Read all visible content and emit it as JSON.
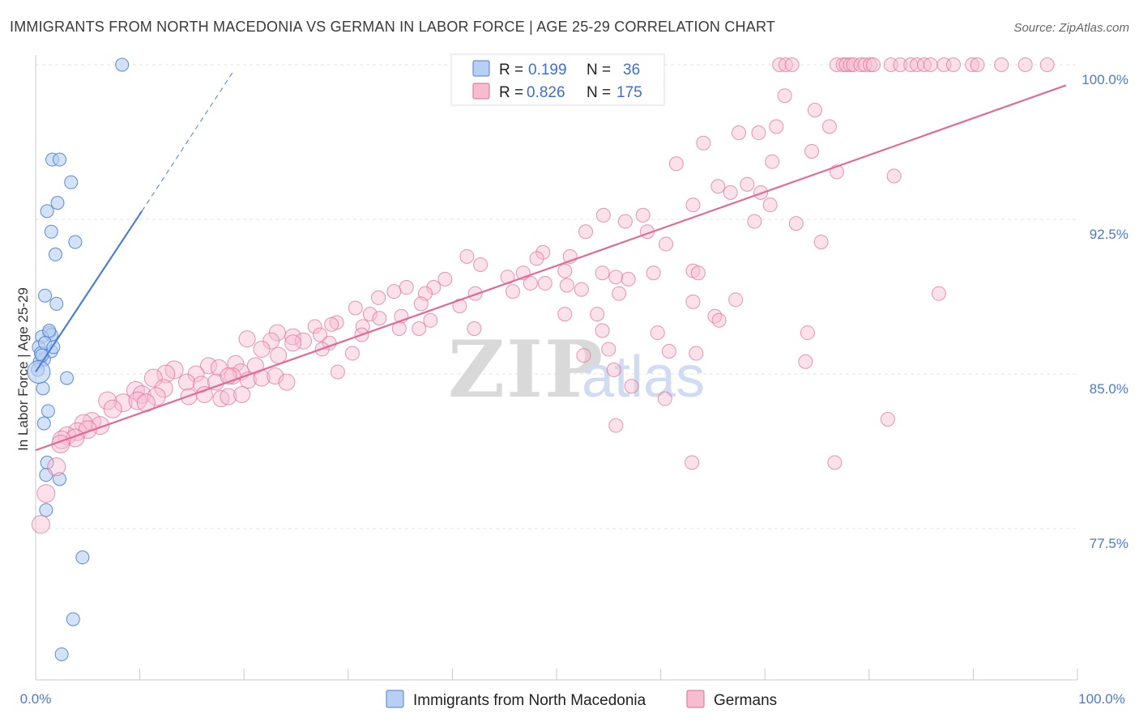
{
  "chart_data": {
    "type": "scatter",
    "title": "IMMIGRANTS FROM NORTH MACEDONIA VS GERMAN IN LABOR FORCE | AGE 25-29 CORRELATION CHART",
    "source": "Source: ZipAtlas.com",
    "xlabel": "",
    "ylabel": "In Labor Force | Age 25-29",
    "xlim": [
      0,
      100
    ],
    "ylim": [
      70.5,
      101.5
    ],
    "x_tick_labels": [
      "0.0%",
      "100.0%"
    ],
    "y_ticks": [
      77.5,
      85.0,
      92.5,
      100.0
    ],
    "y_tick_labels": [
      "77.5%",
      "85.0%",
      "92.5%",
      "100.0%"
    ],
    "watermark": [
      "ZIP",
      "atlas"
    ],
    "legend_stats": [
      {
        "r_label": "R =",
        "r": "0.199",
        "n_label": "N =",
        "n": "36"
      },
      {
        "r_label": "R =",
        "r": "0.826",
        "n_label": "N =",
        "n": "175"
      }
    ],
    "series": [
      {
        "name": "Immigrants from North Macedonia",
        "color": "#4a7fd4",
        "fill": "#b7cff2",
        "trend": {
          "x0": 0,
          "y0": 85.1,
          "x1": 10.2,
          "y1": 92.9,
          "dash_to_x": 19.0,
          "dash_to_y": 99.7
        },
        "points": [
          [
            8.3,
            100
          ],
          [
            1.6,
            95.4
          ],
          [
            2.3,
            95.4
          ],
          [
            3.4,
            94.3
          ],
          [
            2.1,
            93.3
          ],
          [
            1.1,
            92.9
          ],
          [
            1.5,
            91.9
          ],
          [
            3.8,
            91.4
          ],
          [
            1.9,
            90.8
          ],
          [
            0.9,
            88.8
          ],
          [
            2.0,
            88.4
          ],
          [
            1.3,
            87.0
          ],
          [
            1.5,
            86.9
          ],
          [
            0.6,
            86.8
          ],
          [
            0.3,
            86.3
          ],
          [
            1.5,
            86.1
          ],
          [
            0.4,
            85.6
          ],
          [
            0.8,
            85.7
          ],
          [
            0.2,
            85.2
          ],
          [
            3.0,
            84.8
          ],
          [
            0.7,
            84.3
          ],
          [
            1.2,
            83.2
          ],
          [
            0.8,
            82.6
          ],
          [
            1.1,
            80.7
          ],
          [
            1.0,
            80.1
          ],
          [
            2.3,
            79.9
          ],
          [
            1.0,
            78.4
          ],
          [
            4.5,
            76.1
          ],
          [
            3.6,
            73.1
          ],
          [
            2.5,
            71.4
          ],
          [
            0.5,
            86.0
          ],
          [
            0.9,
            86.5
          ],
          [
            1.7,
            86.3
          ],
          [
            1.3,
            87.1
          ],
          [
            0.6,
            85.9
          ],
          [
            0.3,
            85.1
          ]
        ]
      },
      {
        "name": "Germans",
        "color": "#e06a96",
        "fill": "#f6bcd0",
        "trend": {
          "x0": 0,
          "y0": 81.3,
          "x1": 98.9,
          "y1": 99.0
        },
        "points": [
          [
            71.4,
            100
          ],
          [
            72.0,
            100
          ],
          [
            72.6,
            100
          ],
          [
            76.9,
            100
          ],
          [
            77.5,
            100
          ],
          [
            77.8,
            100
          ],
          [
            78.2,
            100
          ],
          [
            78.5,
            100
          ],
          [
            79.2,
            100
          ],
          [
            79.6,
            100
          ],
          [
            80.1,
            100
          ],
          [
            80.4,
            100
          ],
          [
            82.1,
            100
          ],
          [
            83.0,
            100
          ],
          [
            84.0,
            100
          ],
          [
            84.6,
            100
          ],
          [
            85.3,
            100
          ],
          [
            85.9,
            100
          ],
          [
            87.2,
            100
          ],
          [
            88.1,
            100
          ],
          [
            89.9,
            100
          ],
          [
            90.4,
            100
          ],
          [
            92.7,
            100
          ],
          [
            95.0,
            100
          ],
          [
            97.1,
            100
          ],
          [
            71.9,
            98.5
          ],
          [
            74.8,
            97.8
          ],
          [
            71.1,
            97.0
          ],
          [
            76.2,
            97.0
          ],
          [
            67.5,
            96.7
          ],
          [
            69.4,
            96.7
          ],
          [
            64.1,
            96.2
          ],
          [
            74.5,
            95.8
          ],
          [
            61.5,
            95.2
          ],
          [
            70.7,
            95.3
          ],
          [
            76.9,
            94.8
          ],
          [
            82.4,
            94.6
          ],
          [
            65.5,
            94.1
          ],
          [
            68.3,
            94.2
          ],
          [
            69.6,
            93.8
          ],
          [
            66.7,
            93.8
          ],
          [
            63.1,
            93.2
          ],
          [
            70.5,
            93.2
          ],
          [
            54.5,
            92.7
          ],
          [
            58.3,
            92.7
          ],
          [
            56.6,
            92.4
          ],
          [
            69.0,
            92.4
          ],
          [
            73.0,
            92.3
          ],
          [
            52.8,
            91.9
          ],
          [
            58.7,
            91.9
          ],
          [
            75.4,
            91.4
          ],
          [
            60.5,
            91.3
          ],
          [
            48.7,
            90.9
          ],
          [
            51.3,
            90.7
          ],
          [
            48.1,
            90.6
          ],
          [
            41.4,
            90.7
          ],
          [
            42.7,
            90.3
          ],
          [
            50.8,
            90.0
          ],
          [
            46.8,
            89.9
          ],
          [
            54.4,
            89.9
          ],
          [
            59.3,
            89.9
          ],
          [
            63.1,
            90.0
          ],
          [
            63.6,
            89.9
          ],
          [
            55.7,
            89.7
          ],
          [
            56.9,
            89.6
          ],
          [
            45.3,
            89.7
          ],
          [
            48.9,
            89.4
          ],
          [
            39.3,
            89.6
          ],
          [
            38.2,
            89.2
          ],
          [
            47.5,
            89.4
          ],
          [
            51.0,
            89.3
          ],
          [
            35.6,
            89.2
          ],
          [
            34.4,
            89.0
          ],
          [
            37.4,
            88.9
          ],
          [
            45.8,
            89.0
          ],
          [
            52.4,
            89.1
          ],
          [
            56.0,
            88.9
          ],
          [
            42.2,
            88.9
          ],
          [
            32.9,
            88.7
          ],
          [
            37.0,
            88.4
          ],
          [
            40.7,
            88.3
          ],
          [
            30.7,
            88.2
          ],
          [
            32.1,
            87.9
          ],
          [
            35.1,
            87.8
          ],
          [
            50.8,
            87.9
          ],
          [
            53.9,
            87.9
          ],
          [
            65.2,
            87.8
          ],
          [
            65.6,
            87.6
          ],
          [
            28.9,
            87.5
          ],
          [
            33.0,
            87.7
          ],
          [
            28.4,
            87.4
          ],
          [
            31.4,
            87.3
          ],
          [
            34.9,
            87.2
          ],
          [
            36.8,
            87.2
          ],
          [
            37.9,
            87.6
          ],
          [
            26.8,
            87.3
          ],
          [
            27.3,
            86.9
          ],
          [
            23.2,
            87.0
          ],
          [
            42.1,
            87.2
          ],
          [
            54.4,
            87.1
          ],
          [
            59.7,
            87.0
          ],
          [
            24.7,
            86.8
          ],
          [
            25.7,
            86.6
          ],
          [
            28.2,
            86.5
          ],
          [
            31.3,
            86.9
          ],
          [
            20.3,
            86.7
          ],
          [
            22.6,
            86.6
          ],
          [
            24.7,
            86.5
          ],
          [
            27.5,
            86.2
          ],
          [
            30.4,
            86.0
          ],
          [
            60.8,
            86.1
          ],
          [
            63.4,
            86.0
          ],
          [
            55.0,
            86.2
          ],
          [
            52.6,
            85.9
          ],
          [
            73.9,
            85.6
          ],
          [
            21.7,
            86.2
          ],
          [
            23.3,
            85.9
          ],
          [
            21.1,
            85.4
          ],
          [
            19.2,
            85.5
          ],
          [
            19.7,
            85.1
          ],
          [
            16.6,
            85.4
          ],
          [
            17.6,
            85.3
          ],
          [
            18.9,
            84.9
          ],
          [
            15.4,
            85.0
          ],
          [
            13.3,
            85.2
          ],
          [
            12.5,
            85.0
          ],
          [
            11.3,
            84.8
          ],
          [
            14.5,
            84.6
          ],
          [
            15.9,
            84.5
          ],
          [
            17.3,
            84.6
          ],
          [
            18.5,
            84.9
          ],
          [
            20.4,
            84.7
          ],
          [
            21.7,
            84.8
          ],
          [
            23.0,
            84.9
          ],
          [
            24.1,
            84.6
          ],
          [
            12.3,
            84.3
          ],
          [
            9.6,
            84.2
          ],
          [
            10.2,
            84.0
          ],
          [
            11.6,
            83.9
          ],
          [
            14.7,
            83.9
          ],
          [
            16.2,
            84.0
          ],
          [
            17.8,
            83.8
          ],
          [
            18.5,
            83.9
          ],
          [
            19.8,
            84.0
          ],
          [
            8.4,
            83.6
          ],
          [
            9.8,
            83.7
          ],
          [
            6.9,
            83.7
          ],
          [
            10.6,
            83.6
          ],
          [
            7.4,
            83.3
          ],
          [
            5.4,
            82.7
          ],
          [
            6.2,
            82.5
          ],
          [
            4.6,
            82.6
          ],
          [
            4.0,
            82.2
          ],
          [
            5.0,
            82.3
          ],
          [
            3.0,
            82.0
          ],
          [
            3.8,
            81.9
          ],
          [
            2.5,
            81.8
          ],
          [
            2.4,
            81.6
          ],
          [
            2.0,
            80.5
          ],
          [
            1.0,
            79.2
          ],
          [
            0.5,
            77.7
          ],
          [
            29.0,
            85.1
          ],
          [
            55.5,
            85.2
          ],
          [
            57.2,
            84.4
          ],
          [
            60.4,
            83.8
          ],
          [
            55.7,
            82.5
          ],
          [
            81.8,
            82.8
          ],
          [
            63.0,
            80.7
          ],
          [
            76.7,
            80.7
          ],
          [
            86.7,
            88.9
          ],
          [
            63.1,
            88.5
          ],
          [
            67.2,
            88.6
          ],
          [
            74.1,
            87.0
          ]
        ]
      }
    ]
  }
}
